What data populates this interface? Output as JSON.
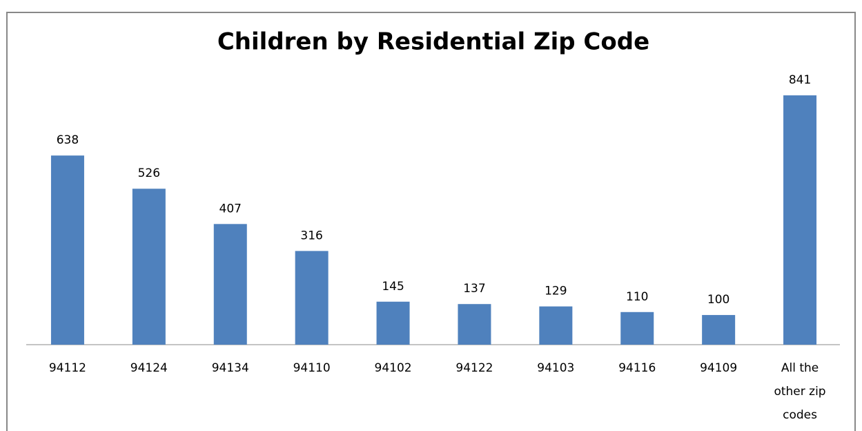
{
  "chart_data": {
    "type": "bar",
    "title": "Children by Residential Zip Code",
    "categories": [
      "94112",
      "94124",
      "94134",
      "94110",
      "94102",
      "94122",
      "94103",
      "94116",
      "94109",
      "All the other zip codes"
    ],
    "values": [
      638,
      526,
      407,
      316,
      145,
      137,
      129,
      110,
      100,
      841
    ],
    "color": "#4f81bd"
  }
}
